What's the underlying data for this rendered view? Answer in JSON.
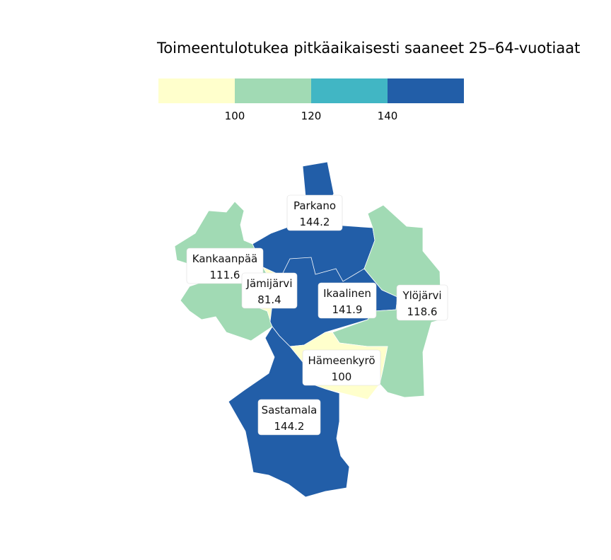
{
  "title": "Toimeentulotukea pitkäaikaisesti saaneet 25–64-vuotiaat",
  "legend": {
    "colors": [
      "#ffffcc",
      "#a1dab4",
      "#41b6c4",
      "#225ea8"
    ],
    "breaks": [
      "100",
      "120",
      "140"
    ]
  },
  "regions": [
    {
      "name": "Parkano",
      "value": "144.2",
      "color": "#225ea8"
    },
    {
      "name": "Kankaanpää",
      "value": "111.6",
      "color": "#a1dab4"
    },
    {
      "name": "Jämijärvi",
      "value": "81.4",
      "color": "#ffffcc"
    },
    {
      "name": "Ikaalinen",
      "value": "141.9",
      "color": "#225ea8"
    },
    {
      "name": "Ylöjärvi",
      "value": "118.6",
      "color": "#a1dab4"
    },
    {
      "name": "Hämeenkyrö",
      "value": "100",
      "color": "#ffffcc"
    },
    {
      "name": "Sastamala",
      "value": "144.2",
      "color": "#225ea8"
    }
  ]
}
